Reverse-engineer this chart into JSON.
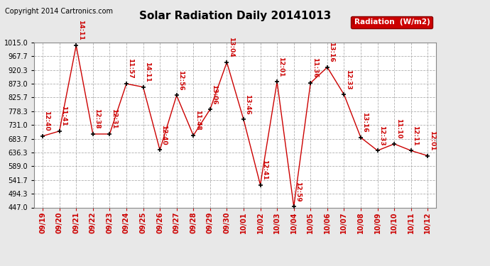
{
  "title": "Solar Radiation Daily 20141013",
  "copyright": "Copyright 2014 Cartronics.com",
  "legend_label": "Radiation  (W/m2)",
  "x_labels": [
    "09/19",
    "09/20",
    "09/21",
    "09/22",
    "09/23",
    "09/24",
    "09/25",
    "09/26",
    "09/27",
    "09/28",
    "09/29",
    "09/30",
    "10/01",
    "10/02",
    "10/03",
    "10/04",
    "10/05",
    "10/06",
    "10/07",
    "10/08",
    "10/09",
    "10/10",
    "10/11",
    "10/12"
  ],
  "y_values": [
    693,
    710,
    1005,
    700,
    700,
    873,
    862,
    645,
    833,
    695,
    785,
    947,
    750,
    525,
    880,
    450,
    876,
    930,
    836,
    688,
    643,
    666,
    643,
    625
  ],
  "time_labels": [
    "12:40",
    "11:41",
    "14:11",
    "12:38",
    "12:31",
    "11:57",
    "14:11",
    "12:40",
    "12:56",
    "11:48",
    "13:06",
    "13:04",
    "13:46",
    "12:41",
    "12:01",
    "12:59",
    "11:36",
    "13:16",
    "12:33",
    "13:16",
    "12:33",
    "11:10",
    "12:11",
    "12:01"
  ],
  "line_color": "#cc0000",
  "marker_color": "#000000",
  "background_color": "#e8e8e8",
  "plot_bg_color": "#ffffff",
  "grid_color": "#b0b0b0",
  "y_ticks": [
    447.0,
    494.3,
    541.7,
    589.0,
    636.3,
    683.7,
    731.0,
    778.3,
    825.7,
    873.0,
    920.3,
    967.7,
    1015.0
  ],
  "ylim": [
    447.0,
    1015.0
  ],
  "annotation_color": "#cc0000",
  "annotation_fontsize": 6.5,
  "title_fontsize": 11,
  "copyright_fontsize": 7,
  "legend_fontsize": 7.5,
  "tick_fontsize": 7,
  "figwidth": 6.9,
  "figheight": 3.75,
  "dpi": 100
}
